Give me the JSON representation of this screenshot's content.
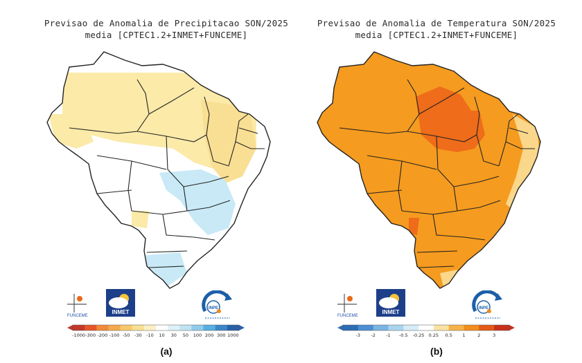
{
  "panel_a": {
    "title_line1": "Previsao de Anomalia de Precipitacao SON/2025",
    "title_line2": "media [CPTEC1.2+INMET+FUNCEME]",
    "caption": "(a)",
    "scale_labels": [
      "-1000",
      "-300",
      "-200",
      "-100",
      "-50",
      "-30",
      "-10",
      "10",
      "30",
      "50",
      "100",
      "200",
      "300",
      "1000"
    ],
    "scale_colors": [
      "#c0392b",
      "#e8552a",
      "#f08a3a",
      "#f5a94e",
      "#f7c96b",
      "#f9df93",
      "#fbefc4",
      "#ffffff",
      "#dff1f8",
      "#bfe3f3",
      "#8fcbeb",
      "#5aaee0",
      "#3a86c8",
      "#2a5fa8"
    ],
    "colors": {
      "dry": "#fbeaa8",
      "wet": "#c9e9f6",
      "none": "#ffffff"
    }
  },
  "panel_b": {
    "title_line1": "Previsao de Anomalia de Temperatura SON/2025",
    "title_line2": "media [CPTEC1.2+INMET+FUNCEME]",
    "caption": "(b)",
    "scale_labels": [
      "-3",
      "-2",
      "-1",
      "-0.5",
      "-0.25",
      "0.25",
      "0.5",
      "1",
      "2",
      "3"
    ],
    "scale_colors": [
      "#2d6db5",
      "#4a8fd1",
      "#7ab4e3",
      "#aad3ef",
      "#d6ecf6",
      "#ffffff",
      "#f9e3a2",
      "#f7b24a",
      "#f28e1c",
      "#e25b16",
      "#c8301b"
    ],
    "colors": {
      "warm": "#f59b1f",
      "hot": "#ee6c1a",
      "mild": "#fad78a"
    }
  },
  "logos": {
    "funceme": "FUNCEME",
    "inmet": "INMET",
    "inpe": "INPE"
  }
}
